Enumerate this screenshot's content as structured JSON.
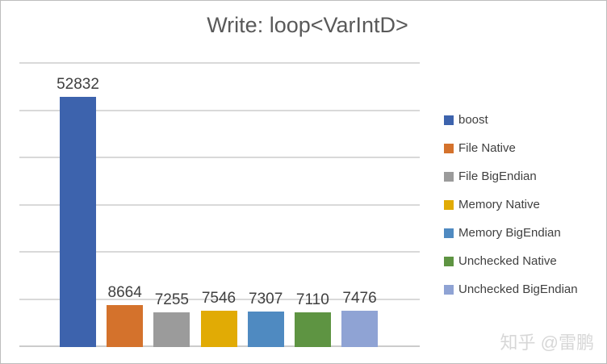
{
  "title": "Write: loop<VarIntD>",
  "watermark": "知乎 @雷鹏",
  "chart_data": {
    "type": "bar",
    "title": "Write: loop<VarIntD>",
    "xlabel": "",
    "ylabel": "",
    "ylim": [
      0,
      60000
    ],
    "gridline_interval": 10000,
    "grid": true,
    "legend_position": "right",
    "data_labels": true,
    "categories": [
      "boost",
      "File Native",
      "File BigEndian",
      "Memory Native",
      "Memory BigEndian",
      "Unchecked Native",
      "Unchecked BigEndian"
    ],
    "values": [
      52832,
      8664,
      7255,
      7546,
      7307,
      7110,
      7476
    ],
    "series": [
      {
        "name": "boost",
        "value": 52832,
        "color": "#3d63ad"
      },
      {
        "name": "File Native",
        "value": 8664,
        "color": "#d4722c"
      },
      {
        "name": "File BigEndian",
        "value": 7255,
        "color": "#9b9b9b"
      },
      {
        "name": "Memory Native",
        "value": 7546,
        "color": "#e1ab05"
      },
      {
        "name": "Memory BigEndian",
        "value": 7307,
        "color": "#4f8ac1"
      },
      {
        "name": "Unchecked Native",
        "value": 7110,
        "color": "#5e9442"
      },
      {
        "name": "Unchecked BigEndian",
        "value": 7476,
        "color": "#8fa3d4"
      }
    ]
  },
  "colors": {
    "gridline": "#d9d9d9",
    "axis_line": "#cccccc",
    "title_text": "#595959",
    "value_label_text": "#404040",
    "legend_text": "#404040",
    "watermark_text": "#d7d7d7",
    "frame_border": "#bdbdbd",
    "background": "#ffffff"
  }
}
